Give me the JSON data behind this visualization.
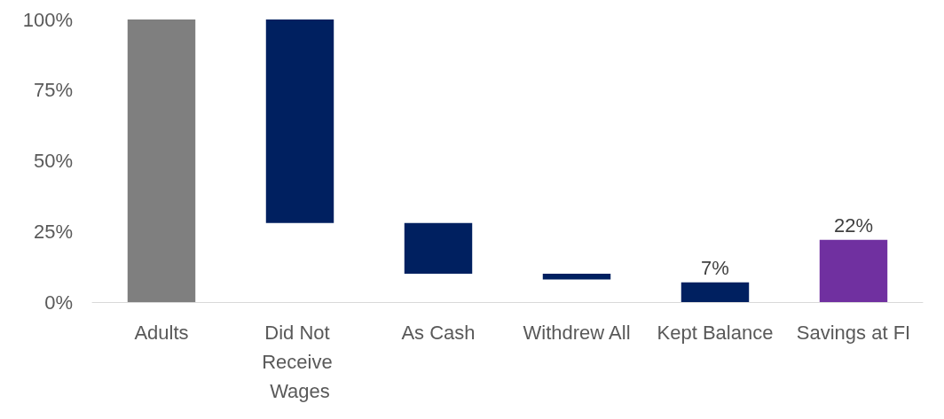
{
  "chart_data": {
    "type": "bar",
    "categories": [
      "Adults",
      "Did Not Receive Wages",
      "As Cash",
      "Withdrew All",
      "Kept Balance",
      "Savings at FI"
    ],
    "values": [
      100,
      72,
      18,
      2,
      7,
      22
    ],
    "base": [
      0,
      28,
      10,
      8,
      0,
      0
    ],
    "colors": [
      "#7f7f7f",
      "#002060",
      "#002060",
      "#002060",
      "#002060",
      "#7030a0"
    ],
    "value_labels": [
      null,
      null,
      null,
      null,
      "7%",
      "22%"
    ],
    "ylim": [
      0,
      100
    ],
    "yticks": [
      {
        "value": 0,
        "label": "0%"
      },
      {
        "value": 25,
        "label": "25%"
      },
      {
        "value": 50,
        "label": "50%"
      },
      {
        "value": 75,
        "label": "75%"
      },
      {
        "value": 100,
        "label": "100%"
      }
    ],
    "grid": false
  }
}
